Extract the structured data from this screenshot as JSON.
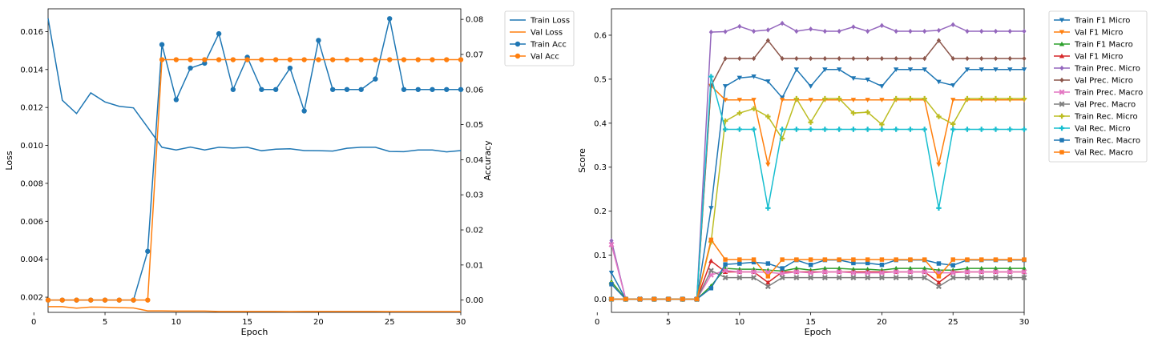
{
  "chart_data": [
    {
      "type": "line",
      "title": "",
      "xlabel": "Epoch",
      "ylabel": "Loss",
      "y2label": "Accuracy",
      "xlim": [
        1,
        30
      ],
      "ylim": [
        0.0012,
        0.0172
      ],
      "y2lim": [
        -0.0035,
        0.083
      ],
      "xticks": [
        "0",
        "5",
        "10",
        "15",
        "20",
        "25",
        "30"
      ],
      "yticks": [
        "0.002",
        "0.004",
        "0.006",
        "0.008",
        "0.010",
        "0.012",
        "0.014",
        "0.016"
      ],
      "y2ticks": [
        "0.00",
        "0.01",
        "0.02",
        "0.03",
        "0.04",
        "0.05",
        "0.06",
        "0.07",
        "0.08"
      ],
      "grid": false,
      "legend_position": "outside-top-right",
      "x": [
        1,
        2,
        3,
        4,
        5,
        6,
        7,
        8,
        9,
        10,
        11,
        12,
        13,
        14,
        15,
        16,
        17,
        18,
        19,
        20,
        21,
        22,
        23,
        24,
        25,
        26,
        27,
        28,
        29,
        30
      ],
      "series": [
        {
          "name": "Train Loss",
          "axis": "left",
          "color": "#1f77b4",
          "marker": "none",
          "values": [
            0.0167,
            0.01238,
            0.01168,
            0.01277,
            0.01229,
            0.01206,
            0.01198,
            0.01095,
            0.0099,
            0.00976,
            0.00991,
            0.00976,
            0.0099,
            0.00986,
            0.0099,
            0.00972,
            0.0098,
            0.00982,
            0.00973,
            0.00972,
            0.0097,
            0.00985,
            0.0099,
            0.0099,
            0.00968,
            0.00967,
            0.00976,
            0.00976,
            0.00966,
            0.00973
          ]
        },
        {
          "name": "Val Loss",
          "axis": "left",
          "color": "#ff7f0e",
          "marker": "none",
          "values": [
            0.0015,
            0.0015,
            0.00142,
            0.00148,
            0.00147,
            0.00145,
            0.00143,
            0.00128,
            0.00128,
            0.00127,
            0.00127,
            0.00127,
            0.00125,
            0.00125,
            0.00125,
            0.00125,
            0.00125,
            0.00124,
            0.00125,
            0.00125,
            0.00125,
            0.00125,
            0.00125,
            0.00125,
            0.00124,
            0.00124,
            0.00124,
            0.00124,
            0.00124,
            0.00124
          ]
        },
        {
          "name": "Train Acc",
          "axis": "right",
          "color": "#1f77b4",
          "marker": "circle",
          "values": [
            0,
            0,
            0,
            0,
            0,
            0,
            0,
            0.0139,
            0.0728,
            0.0571,
            0.0661,
            0.0675,
            0.0759,
            0.06,
            0.0692,
            0.06,
            0.06,
            0.0661,
            0.0539,
            0.074,
            0.06,
            0.06,
            0.06,
            0.063,
            0.0802,
            0.06,
            0.06,
            0.06,
            0.06,
            0.06
          ]
        },
        {
          "name": "Val Acc",
          "axis": "right",
          "color": "#ff7f0e",
          "marker": "circle",
          "values": [
            0,
            0,
            0,
            0,
            0,
            0,
            0,
            0,
            0.0685,
            0.0685,
            0.0685,
            0.0685,
            0.0685,
            0.0685,
            0.0685,
            0.0685,
            0.0685,
            0.0685,
            0.0685,
            0.0685,
            0.0685,
            0.0685,
            0.0685,
            0.0685,
            0.0685,
            0.0685,
            0.0685,
            0.0685,
            0.0685,
            0.0685
          ]
        }
      ]
    },
    {
      "type": "line",
      "title": "",
      "xlabel": "Epoch",
      "ylabel": "Score",
      "xlim": [
        1,
        30
      ],
      "ylim": [
        -0.03,
        0.66
      ],
      "xticks": [
        "0",
        "5",
        "10",
        "15",
        "20",
        "25",
        "30"
      ],
      "yticks": [
        "0.0",
        "0.1",
        "0.2",
        "0.3",
        "0.4",
        "0.5",
        "0.6"
      ],
      "grid": false,
      "legend_position": "outside-top-right",
      "x": [
        1,
        2,
        3,
        4,
        5,
        6,
        7,
        8,
        9,
        10,
        11,
        12,
        13,
        14,
        15,
        16,
        17,
        18,
        19,
        20,
        21,
        22,
        23,
        24,
        25,
        26,
        27,
        28,
        29,
        30
      ],
      "series": [
        {
          "name": "Train F1 Micro",
          "color": "#1f77b4",
          "marker": "triangle-down",
          "values": [
            0.06,
            0,
            0,
            0,
            0,
            0,
            0,
            0.207,
            0.484,
            0.503,
            0.506,
            0.495,
            0.458,
            0.522,
            0.484,
            0.522,
            0.522,
            0.502,
            0.499,
            0.484,
            0.522,
            0.522,
            0.522,
            0.494,
            0.486,
            0.522,
            0.522,
            0.522,
            0.522,
            0.522
          ]
        },
        {
          "name": "Val F1 Micro",
          "color": "#ff7f0e",
          "marker": "triangle-down",
          "values": [
            0,
            0,
            0,
            0,
            0,
            0,
            0,
            0.485,
            0.453,
            0.453,
            0.453,
            0.306,
            0.453,
            0.453,
            0.453,
            0.453,
            0.453,
            0.453,
            0.453,
            0.453,
            0.453,
            0.453,
            0.453,
            0.306,
            0.453,
            0.453,
            0.453,
            0.453,
            0.453,
            0.453
          ]
        },
        {
          "name": "Train F1 Macro",
          "color": "#2ca02c",
          "marker": "triangle-up",
          "values": [
            0.04,
            0,
            0,
            0,
            0,
            0,
            0,
            0.03,
            0.07,
            0.068,
            0.068,
            0.066,
            0.064,
            0.07,
            0.066,
            0.07,
            0.07,
            0.068,
            0.068,
            0.066,
            0.07,
            0.07,
            0.07,
            0.066,
            0.066,
            0.07,
            0.07,
            0.07,
            0.07,
            0.07
          ]
        },
        {
          "name": "Val F1 Micro",
          "color": "#d62728",
          "marker": "triangle-up",
          "values": [
            0,
            0,
            0,
            0,
            0,
            0,
            0,
            0.087,
            0.062,
            0.062,
            0.062,
            0.038,
            0.062,
            0.062,
            0.062,
            0.062,
            0.062,
            0.062,
            0.062,
            0.062,
            0.062,
            0.062,
            0.062,
            0.038,
            0.062,
            0.062,
            0.062,
            0.062,
            0.062,
            0.062
          ]
        },
        {
          "name": "Train Prec. Micro",
          "color": "#9467bd",
          "marker": "diamond",
          "values": [
            0.133,
            0,
            0,
            0,
            0,
            0,
            0,
            0.607,
            0.608,
            0.62,
            0.609,
            0.612,
            0.627,
            0.609,
            0.614,
            0.609,
            0.609,
            0.619,
            0.609,
            0.622,
            0.609,
            0.609,
            0.609,
            0.611,
            0.624,
            0.609,
            0.609,
            0.609,
            0.609,
            0.609
          ]
        },
        {
          "name": "Val Prec. Micro",
          "color": "#8c564b",
          "marker": "diamond",
          "values": [
            0,
            0,
            0,
            0,
            0,
            0,
            0,
            0.485,
            0.547,
            0.547,
            0.547,
            0.588,
            0.547,
            0.547,
            0.547,
            0.547,
            0.547,
            0.547,
            0.547,
            0.547,
            0.547,
            0.547,
            0.547,
            0.588,
            0.547,
            0.547,
            0.547,
            0.547,
            0.547,
            0.547
          ]
        },
        {
          "name": "Train Prec. Macro",
          "color": "#e377c2",
          "marker": "x",
          "values": [
            0.124,
            0,
            0,
            0,
            0,
            0,
            0,
            0.055,
            0.065,
            0.062,
            0.062,
            0.061,
            0.058,
            0.062,
            0.06,
            0.062,
            0.062,
            0.06,
            0.06,
            0.06,
            0.062,
            0.062,
            0.062,
            0.06,
            0.06,
            0.062,
            0.062,
            0.062,
            0.062,
            0.062
          ]
        },
        {
          "name": "Val Prec. Macro",
          "color": "#7f7f7f",
          "marker": "x",
          "values": [
            0,
            0,
            0,
            0,
            0,
            0,
            0,
            0.065,
            0.049,
            0.049,
            0.049,
            0.029,
            0.049,
            0.049,
            0.049,
            0.049,
            0.049,
            0.049,
            0.049,
            0.049,
            0.049,
            0.049,
            0.049,
            0.029,
            0.049,
            0.049,
            0.049,
            0.049,
            0.049,
            0.049
          ]
        },
        {
          "name": "Train Rec. Micro",
          "color": "#bcbd22",
          "marker": "plus",
          "values": [
            0.035,
            0,
            0,
            0,
            0,
            0,
            0,
            0.13,
            0.405,
            0.423,
            0.433,
            0.415,
            0.365,
            0.456,
            0.402,
            0.456,
            0.456,
            0.423,
            0.425,
            0.397,
            0.456,
            0.456,
            0.456,
            0.415,
            0.398,
            0.456,
            0.456,
            0.456,
            0.456,
            0.456
          ]
        },
        {
          "name": "Val Rec. Micro",
          "color": "#17becf",
          "marker": "plus",
          "values": [
            0,
            0,
            0,
            0,
            0,
            0,
            0,
            0.506,
            0.386,
            0.386,
            0.386,
            0.207,
            0.386,
            0.386,
            0.386,
            0.386,
            0.386,
            0.386,
            0.386,
            0.386,
            0.386,
            0.386,
            0.386,
            0.207,
            0.386,
            0.386,
            0.386,
            0.386,
            0.386,
            0.386
          ]
        },
        {
          "name": "Train Rec. Macro",
          "color": "#1f77b4",
          "marker": "square",
          "values": [
            0.034,
            0,
            0,
            0,
            0,
            0,
            0,
            0.025,
            0.079,
            0.081,
            0.084,
            0.081,
            0.07,
            0.089,
            0.078,
            0.089,
            0.089,
            0.082,
            0.082,
            0.078,
            0.089,
            0.089,
            0.089,
            0.081,
            0.077,
            0.089,
            0.089,
            0.089,
            0.089,
            0.089
          ]
        },
        {
          "name": "Val Rec. Macro",
          "color": "#ff7f0e",
          "marker": "square",
          "values": [
            0,
            0,
            0,
            0,
            0,
            0,
            0,
            0.135,
            0.09,
            0.09,
            0.09,
            0.052,
            0.09,
            0.09,
            0.09,
            0.09,
            0.09,
            0.09,
            0.09,
            0.09,
            0.09,
            0.09,
            0.09,
            0.052,
            0.09,
            0.09,
            0.09,
            0.09,
            0.09,
            0.09
          ]
        }
      ]
    }
  ]
}
